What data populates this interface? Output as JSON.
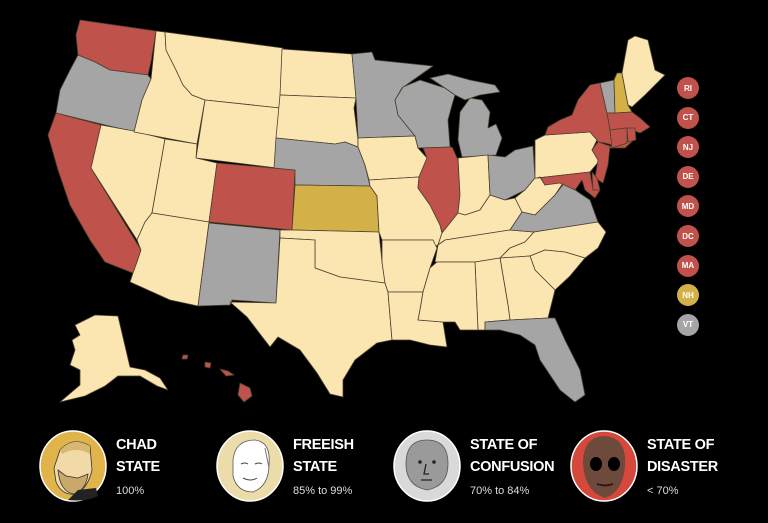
{
  "colors": {
    "chad": "#d4b048",
    "freeish": "#fbe6b1",
    "confusion": "#a5a5a5",
    "disaster": "#bf524a",
    "border": "#4a4030"
  },
  "states": {
    "WA": "disaster",
    "OR": "confusion",
    "CA": "disaster",
    "NV": "freeish",
    "ID": "freeish",
    "MT": "freeish",
    "WY": "freeish",
    "UT": "freeish",
    "CO": "disaster",
    "AZ": "freeish",
    "NM": "confusion",
    "ND": "freeish",
    "SD": "freeish",
    "NE": "confusion",
    "KS": "chad",
    "OK": "freeish",
    "TX": "freeish",
    "MN": "confusion",
    "IA": "freeish",
    "MO": "freeish",
    "AR": "freeish",
    "LA": "freeish",
    "WI": "confusion",
    "MI": "confusion",
    "IL": "disaster",
    "IN": "freeish",
    "OH": "confusion",
    "KY": "freeish",
    "TN": "freeish",
    "MS": "freeish",
    "AL": "freeish",
    "GA": "freeish",
    "FL": "confusion",
    "SC": "freeish",
    "NC": "freeish",
    "VA": "confusion",
    "WV": "freeish",
    "PA": "freeish",
    "NY": "disaster",
    "NJ": "disaster",
    "DE": "disaster",
    "MD": "disaster",
    "CT": "disaster",
    "RI": "disaster",
    "MA": "disaster",
    "VT": "confusion",
    "NH": "chad",
    "ME": "freeish",
    "AK": "freeish",
    "HI": "disaster"
  },
  "small_states": [
    {
      "label": "RI",
      "status": "disaster"
    },
    {
      "label": "CT",
      "status": "disaster"
    },
    {
      "label": "NJ",
      "status": "disaster"
    },
    {
      "label": "DE",
      "status": "disaster"
    },
    {
      "label": "MD",
      "status": "disaster"
    },
    {
      "label": "DC",
      "status": "disaster"
    },
    {
      "label": "MA",
      "status": "disaster"
    },
    {
      "label": "NH",
      "status": "chad"
    },
    {
      "label": "VT",
      "status": "confusion"
    }
  ],
  "legend": [
    {
      "key": "chad",
      "line1": "CHAD",
      "line2": "STATE",
      "range": "100%",
      "ring": "#e0b44a",
      "icon": "bearded-chad-face-icon"
    },
    {
      "key": "freeish",
      "line1": "FREEISH",
      "line2": "STATE",
      "range": "85% to 99%",
      "ring": "#ecdcaa",
      "icon": "masked-wojak-face-icon"
    },
    {
      "key": "confusion",
      "line1": "STATE OF",
      "line2": "CONFUSION",
      "range": "70% to 84%",
      "ring": "#d9d9d9",
      "icon": "npc-face-icon"
    },
    {
      "key": "disaster",
      "line1": "STATE OF",
      "line2": "DISASTER",
      "range": "< 70%",
      "ring": "#d6473c",
      "icon": "doomer-skull-face-icon"
    }
  ]
}
